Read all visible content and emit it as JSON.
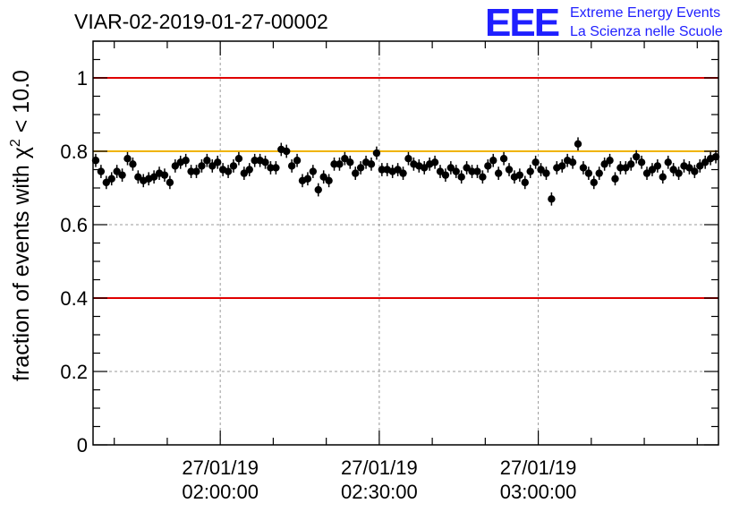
{
  "header": {
    "title": "VIAR-02-2019-01-27-00002",
    "logo": {
      "letters": "EEE",
      "line1": "Extreme Energy Events",
      "line2": "La Scienza nelle Scuole"
    }
  },
  "colors": {
    "reference_lines": "#e00000",
    "target_line": "#f0b400",
    "points": "#000000",
    "logo": "#1f1fff",
    "grid": "#9a9a9a"
  },
  "chart_data": {
    "type": "scatter",
    "title": "VIAR-02-2019-01-27-00002",
    "ylabel": "fraction of events with χ² < 10.0",
    "ylabel_parts": {
      "prefix": "fraction of events with ",
      "symbol": "χ",
      "exponent": "2",
      "suffix": " < 10.0"
    },
    "xlabel": "",
    "x_unit": "time",
    "xlim": [
      "01:36:00",
      "03:34:00"
    ],
    "ylim": [
      0,
      1.1
    ],
    "grid": true,
    "y_ticks": [
      {
        "value": 0,
        "label": "0"
      },
      {
        "value": 0.2,
        "label": "0.2"
      },
      {
        "value": 0.4,
        "label": "0.4"
      },
      {
        "value": 0.6,
        "label": "0.6"
      },
      {
        "value": 0.8,
        "label": "0.8"
      },
      {
        "value": 1.0,
        "label": "1"
      }
    ],
    "x_ticks": [
      {
        "time": "02:00:00",
        "date": "27/01/19",
        "label": "02:00:00"
      },
      {
        "time": "02:30:00",
        "date": "27/01/19",
        "label": "02:30:00"
      },
      {
        "time": "03:00:00",
        "date": "27/01/19",
        "label": "03:00:00"
      }
    ],
    "reference_lines": [
      {
        "y": 1.0,
        "color": "#e00000"
      },
      {
        "y": 0.8,
        "color": "#f0b400"
      },
      {
        "y": 0.4,
        "color": "#e00000"
      }
    ],
    "series": [
      {
        "x": [
          "01:36:30",
          "01:37:30",
          "01:38:30",
          "01:39:30",
          "01:40:30",
          "01:41:30",
          "01:42:30",
          "01:43:30",
          "01:44:30",
          "01:45:30",
          "01:46:30",
          "01:47:30",
          "01:48:30",
          "01:49:30",
          "01:50:30",
          "01:51:30",
          "01:52:30",
          "01:53:30",
          "01:54:30",
          "01:55:30",
          "01:56:30",
          "01:57:30",
          "01:58:30",
          "01:59:30",
          "02:00:30",
          "02:01:30",
          "02:02:30",
          "02:03:30",
          "02:04:30",
          "02:05:30",
          "02:06:30",
          "02:07:30",
          "02:08:30",
          "02:09:30",
          "02:10:30",
          "02:11:30",
          "02:12:30",
          "02:13:30",
          "02:14:30",
          "02:15:30",
          "02:16:30",
          "02:17:30",
          "02:18:30",
          "02:19:30",
          "02:20:30",
          "02:21:30",
          "02:22:30",
          "02:23:30",
          "02:24:30",
          "02:25:30",
          "02:26:30",
          "02:27:30",
          "02:28:30",
          "02:29:30",
          "02:30:30",
          "02:31:30",
          "02:32:30",
          "02:33:30",
          "02:34:30",
          "02:35:30",
          "02:36:30",
          "02:37:30",
          "02:38:30",
          "02:39:30",
          "02:40:30",
          "02:41:30",
          "02:42:30",
          "02:43:30",
          "02:44:30",
          "02:45:30",
          "02:46:30",
          "02:47:30",
          "02:48:30",
          "02:49:30",
          "02:50:30",
          "02:51:30",
          "02:52:30",
          "02:53:30",
          "02:54:30",
          "02:55:30",
          "02:56:30",
          "02:57:30",
          "02:58:30",
          "02:59:30",
          "03:00:30",
          "03:01:30",
          "03:02:30",
          "03:03:30",
          "03:04:30",
          "03:05:30",
          "03:06:30",
          "03:07:30",
          "03:08:30",
          "03:09:30",
          "03:10:30",
          "03:11:30",
          "03:12:30",
          "03:13:30",
          "03:14:30",
          "03:15:30",
          "03:16:30",
          "03:17:30",
          "03:18:30",
          "03:19:30",
          "03:20:30",
          "03:21:30",
          "03:22:30",
          "03:23:30",
          "03:24:30",
          "03:25:30",
          "03:26:30",
          "03:27:30",
          "03:28:30",
          "03:29:30",
          "03:30:30",
          "03:31:30",
          "03:32:30",
          "03:33:30"
        ],
        "y": [
          0.775,
          0.745,
          0.715,
          0.725,
          0.745,
          0.735,
          0.78,
          0.765,
          0.73,
          0.72,
          0.725,
          0.73,
          0.74,
          0.735,
          0.715,
          0.76,
          0.77,
          0.775,
          0.745,
          0.745,
          0.76,
          0.775,
          0.76,
          0.77,
          0.75,
          0.745,
          0.76,
          0.78,
          0.74,
          0.75,
          0.775,
          0.775,
          0.77,
          0.755,
          0.755,
          0.805,
          0.8,
          0.76,
          0.775,
          0.72,
          0.725,
          0.745,
          0.695,
          0.73,
          0.72,
          0.765,
          0.765,
          0.78,
          0.77,
          0.74,
          0.755,
          0.77,
          0.765,
          0.795,
          0.75,
          0.75,
          0.745,
          0.75,
          0.74,
          0.78,
          0.765,
          0.76,
          0.755,
          0.765,
          0.77,
          0.745,
          0.735,
          0.755,
          0.745,
          0.73,
          0.755,
          0.745,
          0.745,
          0.73,
          0.76,
          0.775,
          0.74,
          0.78,
          0.75,
          0.73,
          0.735,
          0.715,
          0.745,
          0.77,
          0.75,
          0.74,
          0.67,
          0.755,
          0.76,
          0.775,
          0.77,
          0.82,
          0.755,
          0.74,
          0.715,
          0.74,
          0.765,
          0.775,
          0.725,
          0.755,
          0.755,
          0.765,
          0.785,
          0.77,
          0.74,
          0.75,
          0.76,
          0.73,
          0.77,
          0.75,
          0.74,
          0.76,
          0.755,
          0.745,
          0.76,
          0.77,
          0.78,
          0.785
        ],
        "err": 0.018
      }
    ]
  }
}
